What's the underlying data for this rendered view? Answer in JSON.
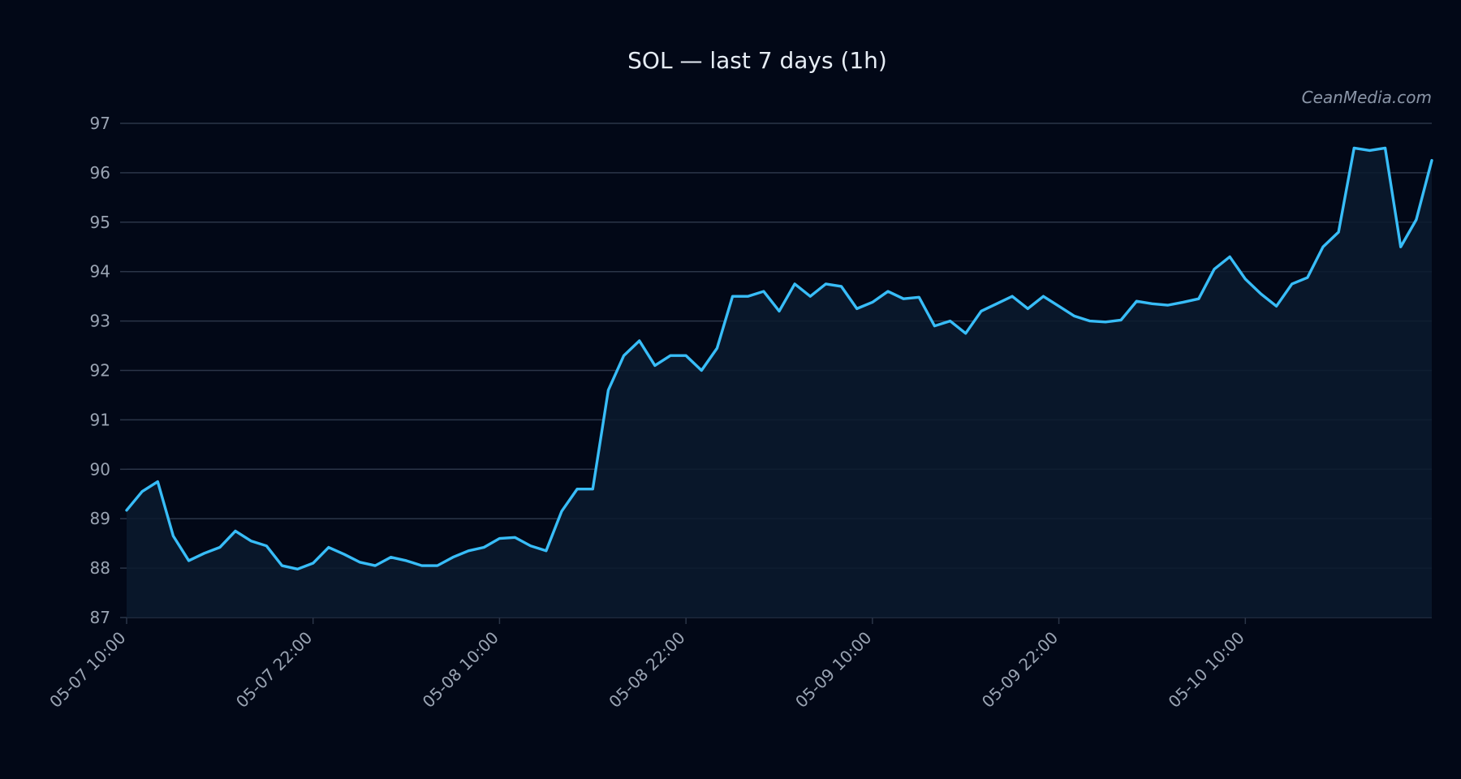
{
  "title": "SOL — last 7 days (1h)",
  "watermark": "CeanMedia.com",
  "colors": {
    "background": "#020817",
    "line": "#38bdf8",
    "area": "#0b1a2e",
    "grid": "#2b3548"
  },
  "chart_data": {
    "type": "area",
    "title": "SOL — last 7 days (1h)",
    "xlabel": "",
    "ylabel": "",
    "ylim": [
      87,
      97
    ],
    "yticks": [
      87,
      88,
      89,
      90,
      91,
      92,
      93,
      94,
      95,
      96,
      97
    ],
    "x_start": "05-07 10:00",
    "x_interval": "1h",
    "xticks": [
      "05-07 10:00",
      "05-07 22:00",
      "05-08 10:00",
      "05-08 22:00",
      "05-09 10:00",
      "05-09 22:00",
      "05-10 10:00"
    ],
    "grid": true,
    "legend": "none",
    "series": [
      {
        "values": [
          89.17,
          89.55,
          89.75,
          88.65,
          88.15,
          88.3,
          88.42,
          88.75,
          88.55,
          88.45,
          88.05,
          87.98,
          88.1,
          88.42,
          88.28,
          88.12,
          88.05,
          88.22,
          88.15,
          88.05,
          88.05,
          88.22,
          88.35,
          88.42,
          88.6,
          88.62,
          88.45,
          88.35,
          89.15,
          89.6,
          89.6,
          91.6,
          92.3,
          92.6,
          92.1,
          92.3,
          92.3,
          92.0,
          92.45,
          93.5,
          93.5,
          93.6,
          93.2,
          93.75,
          93.5,
          93.75,
          93.7,
          93.25,
          93.38,
          93.6,
          93.45,
          93.48,
          92.9,
          93.0,
          92.75,
          93.2,
          93.35,
          93.5,
          93.25,
          93.5,
          93.3,
          93.1,
          93.0,
          92.98,
          93.02,
          93.4,
          93.35,
          93.32,
          93.38,
          93.45,
          94.05,
          94.3,
          93.85,
          93.55,
          93.3,
          93.75,
          93.88,
          94.5,
          94.8,
          96.5,
          96.45,
          96.5,
          94.5,
          95.05,
          96.25
        ]
      }
    ]
  }
}
